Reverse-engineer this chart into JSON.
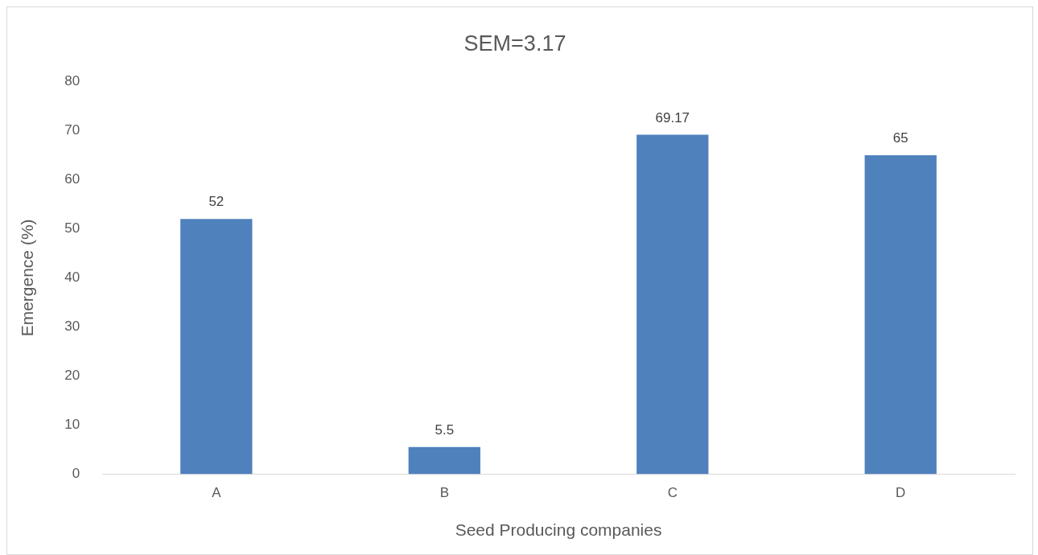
{
  "chart_data": {
    "type": "bar",
    "title": "SEM=3.17",
    "xlabel": "Seed Producing companies",
    "ylabel": "Emergence (%)",
    "categories": [
      "A",
      "B",
      "C",
      "D"
    ],
    "values": [
      52,
      5.5,
      69.17,
      65
    ],
    "color": "#4f81bd",
    "ylim": [
      0,
      80
    ],
    "yticks": [
      0,
      10,
      20,
      30,
      40,
      50,
      60,
      70,
      80
    ],
    "grid": false,
    "data_labels": true
  }
}
